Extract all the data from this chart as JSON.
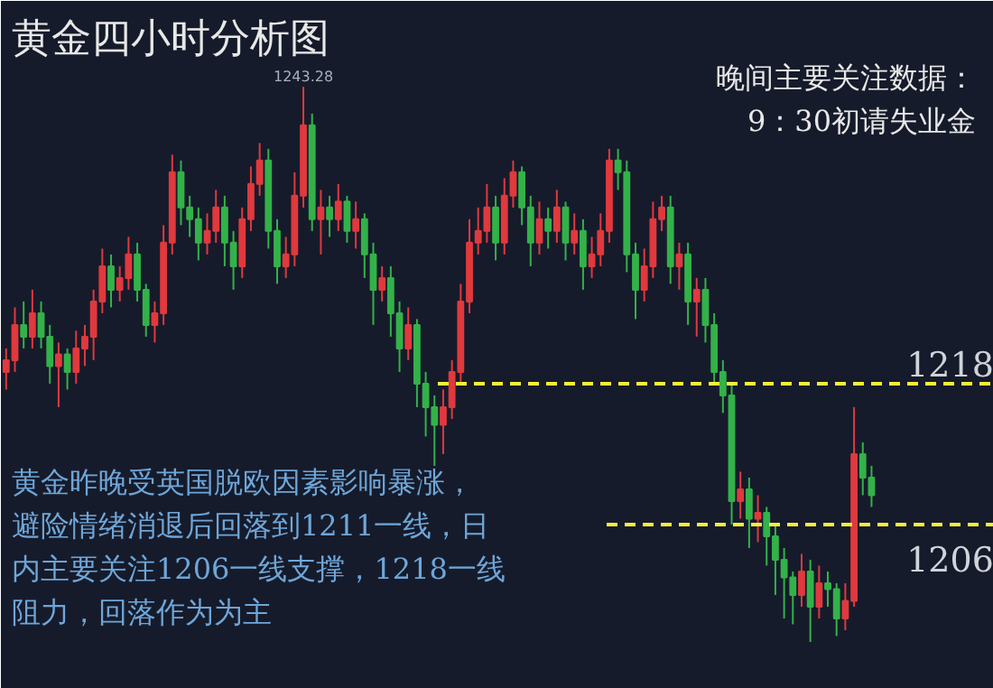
{
  "chart_data": {
    "type": "candlestick",
    "title": "黄金四小时分析图",
    "categories": [
      null,
      null,
      null,
      null,
      null,
      null,
      null,
      null,
      null,
      null,
      null,
      null,
      null,
      null,
      null,
      null,
      null,
      null,
      null,
      null,
      null,
      null,
      null,
      null,
      null,
      null,
      null,
      null,
      null,
      null,
      null,
      null,
      null,
      null,
      null,
      null,
      null,
      null,
      null,
      null,
      null,
      null,
      null,
      null,
      null,
      null,
      null,
      null,
      null,
      null,
      null,
      null,
      null,
      null,
      null,
      null,
      null,
      null,
      null,
      null,
      null,
      null,
      null,
      null,
      null,
      null,
      null,
      null,
      null,
      null,
      null,
      null,
      null,
      null,
      null,
      null,
      null,
      null,
      null,
      null,
      null,
      null,
      null,
      null,
      null,
      null,
      null,
      null,
      null,
      null,
      null,
      null,
      null,
      null,
      null,
      null,
      null,
      null,
      null,
      null
    ],
    "ohlc": [
      [
        1219,
        1221,
        1217.5,
        1220
      ],
      [
        1220,
        1224.5,
        1219,
        1223
      ],
      [
        1223,
        1225,
        1221,
        1222
      ],
      [
        1222,
        1226,
        1221,
        1224
      ],
      [
        1224,
        1225,
        1221,
        1222
      ],
      [
        1222,
        1223,
        1218,
        1219.5
      ],
      [
        1219.5,
        1221.5,
        1216,
        1220.5
      ],
      [
        1220.5,
        1221,
        1217.5,
        1219
      ],
      [
        1219,
        1222.5,
        1218,
        1221
      ],
      [
        1221,
        1223,
        1219.5,
        1222
      ],
      [
        1222,
        1226,
        1220,
        1225
      ],
      [
        1225,
        1229.5,
        1224,
        1228
      ],
      [
        1228,
        1229,
        1224.5,
        1226
      ],
      [
        1226,
        1228,
        1225,
        1227
      ],
      [
        1227,
        1230.5,
        1226,
        1229
      ],
      [
        1229,
        1230,
        1225,
        1226
      ],
      [
        1226,
        1226.5,
        1222,
        1223
      ],
      [
        1223,
        1225,
        1221.5,
        1224
      ],
      [
        1224,
        1231.5,
        1223,
        1230
      ],
      [
        1230,
        1237.5,
        1229,
        1236
      ],
      [
        1236,
        1237,
        1231.5,
        1233
      ],
      [
        1233,
        1234,
        1230.5,
        1232
      ],
      [
        1232,
        1233,
        1228.5,
        1230
      ],
      [
        1230,
        1232.5,
        1229,
        1231
      ],
      [
        1231,
        1234.5,
        1230,
        1233
      ],
      [
        1233,
        1234,
        1228,
        1230
      ],
      [
        1230,
        1231,
        1226,
        1228
      ],
      [
        1228,
        1233,
        1227,
        1232
      ],
      [
        1232,
        1236.5,
        1231,
        1235
      ],
      [
        1235,
        1238.5,
        1234,
        1237
      ],
      [
        1237,
        1238,
        1229.5,
        1231
      ],
      [
        1231,
        1232,
        1226.5,
        1228
      ],
      [
        1228,
        1230.5,
        1227,
        1229
      ],
      [
        1229,
        1236,
        1228,
        1234
      ],
      [
        1234,
        1243.28,
        1233,
        1240
      ],
      [
        1240,
        1241,
        1231,
        1232
      ],
      [
        1232,
        1234.5,
        1229,
        1233
      ],
      [
        1233,
        1234,
        1230.5,
        1232
      ],
      [
        1232,
        1235,
        1231,
        1233.5
      ],
      [
        1233.5,
        1234,
        1230,
        1231
      ],
      [
        1231,
        1233.5,
        1229.5,
        1232
      ],
      [
        1232,
        1232.5,
        1227,
        1229
      ],
      [
        1229,
        1230,
        1223,
        1226
      ],
      [
        1226,
        1228,
        1225,
        1227
      ],
      [
        1227,
        1228,
        1222,
        1224
      ],
      [
        1224,
        1225,
        1219,
        1221
      ],
      [
        1221,
        1224.5,
        1220,
        1223
      ],
      [
        1223,
        1223.5,
        1216,
        1218
      ],
      [
        1218,
        1219,
        1213.5,
        1216
      ],
      [
        1216,
        1217,
        1211,
        1214.5
      ],
      [
        1214.5,
        1217.5,
        1212,
        1216
      ],
      [
        1216,
        1220,
        1215,
        1219
      ],
      [
        1219,
        1226.5,
        1218,
        1225
      ],
      [
        1225,
        1232,
        1224,
        1230
      ],
      [
        1230,
        1233,
        1229,
        1231
      ],
      [
        1231,
        1235,
        1230,
        1233
      ],
      [
        1233,
        1234,
        1228.5,
        1230
      ],
      [
        1230,
        1235.5,
        1229,
        1234
      ],
      [
        1234,
        1237,
        1233,
        1236
      ],
      [
        1236,
        1236.5,
        1231.5,
        1233
      ],
      [
        1233,
        1234,
        1228,
        1230
      ],
      [
        1230,
        1233.5,
        1229,
        1232
      ],
      [
        1232,
        1233,
        1229.5,
        1231
      ],
      [
        1231,
        1234.5,
        1230,
        1233
      ],
      [
        1233,
        1233.5,
        1228.5,
        1230
      ],
      [
        1230,
        1232.5,
        1229,
        1231
      ],
      [
        1231,
        1232,
        1226,
        1228
      ],
      [
        1228,
        1230.5,
        1227,
        1229
      ],
      [
        1229,
        1232.5,
        1228,
        1231
      ],
      [
        1231,
        1238,
        1230,
        1237
      ],
      [
        1237,
        1238,
        1234.5,
        1236
      ],
      [
        1236,
        1237,
        1227.5,
        1229
      ],
      [
        1229,
        1230,
        1223.5,
        1226
      ],
      [
        1226,
        1229.5,
        1225,
        1228
      ],
      [
        1228,
        1233.5,
        1227,
        1232
      ],
      [
        1232,
        1234,
        1231,
        1233
      ],
      [
        1233,
        1234,
        1226.5,
        1228
      ],
      [
        1228,
        1230,
        1226,
        1229
      ],
      [
        1229,
        1230,
        1223,
        1225
      ],
      [
        1225,
        1227,
        1222,
        1226
      ],
      [
        1226,
        1227,
        1221.5,
        1223
      ],
      [
        1223,
        1224,
        1218,
        1219
      ],
      [
        1219,
        1220,
        1215.5,
        1217
      ],
      [
        1217,
        1218,
        1206,
        1208
      ],
      [
        1208,
        1210.5,
        1206.5,
        1209
      ],
      [
        1209,
        1210,
        1204,
        1206.5
      ],
      [
        1206.5,
        1208.5,
        1204.5,
        1207
      ],
      [
        1207,
        1207.5,
        1202.5,
        1205
      ],
      [
        1205,
        1206,
        1200,
        1203
      ],
      [
        1203,
        1204,
        1198,
        1201.5
      ],
      [
        1201.5,
        1202,
        1197.5,
        1200
      ],
      [
        1200,
        1203.5,
        1199,
        1202
      ],
      [
        1202,
        1203,
        1196,
        1199
      ],
      [
        1199,
        1202.5,
        1198,
        1201
      ],
      [
        1201,
        1202,
        1199,
        1200.5
      ],
      [
        1200.5,
        1201,
        1196.5,
        1198
      ],
      [
        1198,
        1201,
        1197,
        1199.5
      ],
      [
        1199.5,
        1216,
        1199,
        1212
      ],
      [
        1212,
        1213,
        1208.5,
        1210
      ],
      [
        1210,
        1211,
        1207.5,
        1208.5
      ]
    ],
    "ylim": [
      1192,
      1250.6
    ],
    "tick_labels": false,
    "grid": false,
    "ref_lines": [
      {
        "axis": "y",
        "value": 1218,
        "label": "1218",
        "color": "#f5f03a",
        "line_style": "dashed"
      },
      {
        "axis": "y",
        "value": 1206,
        "label": "1206",
        "color": "#f5f03a",
        "line_style": "dashed"
      }
    ],
    "annotations": [
      {
        "text": "1243.28",
        "y": 1243.28
      },
      "晚间主要关注数据：",
      "9：30初请失业金",
      "黄金昨晚受英国脱欧因素影响暴涨，",
      "避险情绪消退后回落到1211一线，日",
      "内主要关注1206一线支撑，1218一线",
      "阻力，回落作为为主"
    ]
  }
}
